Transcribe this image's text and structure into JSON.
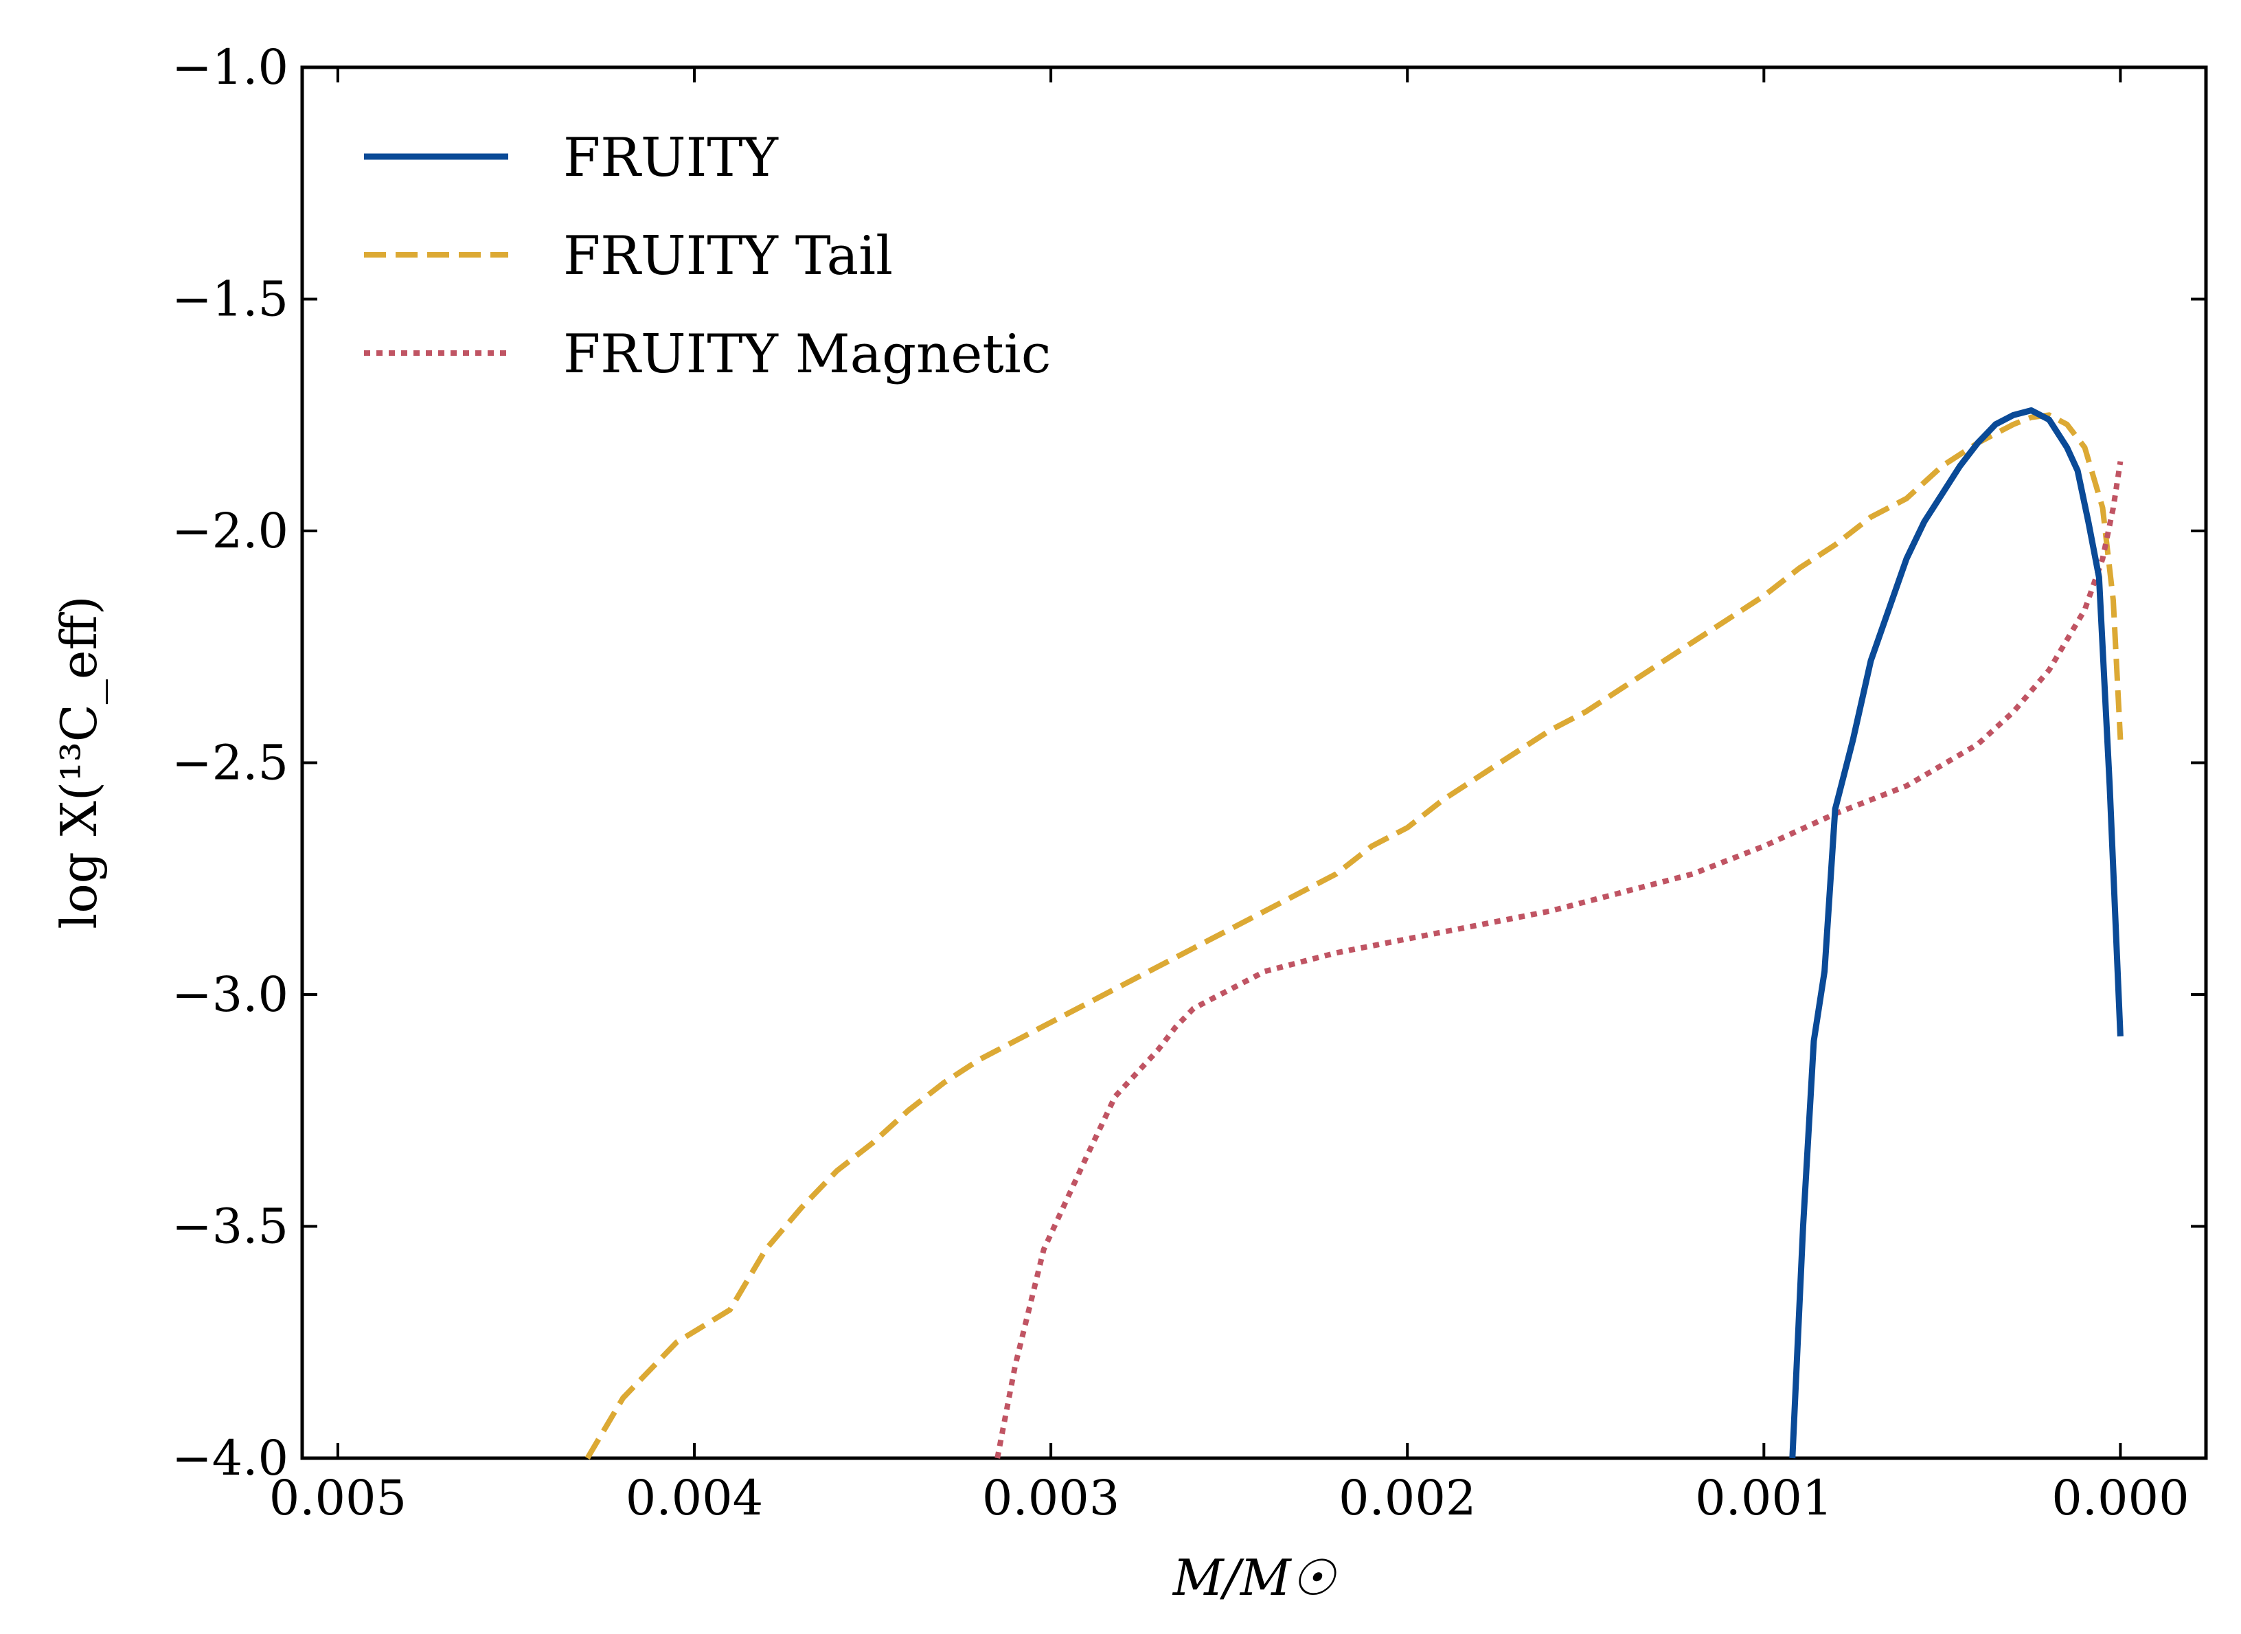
{
  "chart_data": {
    "type": "line",
    "title": "",
    "xlabel": "M/M☉",
    "ylabel": "log X(¹³C_eff)",
    "xlim": [
      0.0051,
      -0.00024
    ],
    "ylim": [
      -4.0,
      -1.0
    ],
    "x_ticks": [
      0.005,
      0.004,
      0.003,
      0.002,
      0.001,
      0.0
    ],
    "x_tick_labels": [
      "0.005",
      "0.004",
      "0.003",
      "0.002",
      "0.001",
      "0.000"
    ],
    "y_ticks": [
      -1.0,
      -1.5,
      -2.0,
      -2.5,
      -3.0,
      -3.5,
      -4.0
    ],
    "y_tick_labels": [
      "−1.0",
      "−1.5",
      "−2.0",
      "−2.5",
      "−3.0",
      "−3.5",
      "−4.0"
    ],
    "grid": false,
    "legend_position": "top-left",
    "series": [
      {
        "name": "FRUITY",
        "color": "#0a4a97",
        "style": "solid",
        "x": [
          0.00092,
          0.00089,
          0.00086,
          0.00083,
          0.0008,
          0.00075,
          0.0007,
          0.00065,
          0.0006,
          0.00055,
          0.0005,
          0.00045,
          0.0004,
          0.00035,
          0.0003,
          0.00025,
          0.0002,
          0.00015,
          0.00012,
          9e-05,
          6e-05,
          3e-05,
          0.0
        ],
        "y": [
          -4.0,
          -3.5,
          -3.1,
          -2.95,
          -2.6,
          -2.45,
          -2.28,
          -2.17,
          -2.06,
          -1.98,
          -1.92,
          -1.86,
          -1.81,
          -1.77,
          -1.75,
          -1.74,
          -1.76,
          -1.82,
          -1.87,
          -1.98,
          -2.1,
          -2.55,
          -3.09
        ]
      },
      {
        "name": "FRUITY Tail",
        "color": "#dca934",
        "style": "dashed",
        "x": [
          0.0043,
          0.0042,
          0.00405,
          0.0039,
          0.0038,
          0.0037,
          0.0036,
          0.0035,
          0.0034,
          0.0033,
          0.0032,
          0.0031,
          0.003,
          0.0029,
          0.0028,
          0.0027,
          0.0026,
          0.0025,
          0.0024,
          0.0023,
          0.0022,
          0.0021,
          0.002,
          0.0019,
          0.0018,
          0.0017,
          0.0016,
          0.0015,
          0.0014,
          0.0013,
          0.0012,
          0.0011,
          0.001,
          0.0009,
          0.0008,
          0.0007,
          0.0006,
          0.0005,
          0.0004,
          0.0003,
          0.00025,
          0.0002,
          0.00015,
          0.0001,
          5e-05,
          2e-05,
          0.0
        ],
        "y": [
          -4.0,
          -3.87,
          -3.75,
          -3.68,
          -3.55,
          -3.46,
          -3.38,
          -3.32,
          -3.25,
          -3.19,
          -3.14,
          -3.1,
          -3.06,
          -3.02,
          -2.98,
          -2.94,
          -2.9,
          -2.86,
          -2.82,
          -2.78,
          -2.74,
          -2.68,
          -2.64,
          -2.58,
          -2.53,
          -2.48,
          -2.43,
          -2.39,
          -2.34,
          -2.29,
          -2.24,
          -2.19,
          -2.14,
          -2.08,
          -2.03,
          -1.97,
          -1.93,
          -1.86,
          -1.81,
          -1.77,
          -1.755,
          -1.75,
          -1.77,
          -1.82,
          -1.95,
          -2.15,
          -2.45
        ]
      },
      {
        "name": "FRUITY Magnetic",
        "color": "#c05463",
        "style": "dotted",
        "x": [
          0.00315,
          0.0031,
          0.00302,
          0.0029,
          0.00282,
          0.0027,
          0.00265,
          0.0026,
          0.00255,
          0.0025,
          0.0024,
          0.0022,
          0.002,
          0.0018,
          0.0016,
          0.0014,
          0.0012,
          0.001,
          0.0008,
          0.0006,
          0.0004,
          0.0003,
          0.0002,
          0.0001,
          5e-05,
          2e-05,
          0.0
        ],
        "y": [
          -4.0,
          -3.8,
          -3.55,
          -3.35,
          -3.22,
          -3.12,
          -3.07,
          -3.03,
          -3.01,
          -2.99,
          -2.95,
          -2.91,
          -2.88,
          -2.85,
          -2.82,
          -2.78,
          -2.74,
          -2.68,
          -2.61,
          -2.55,
          -2.46,
          -2.39,
          -2.3,
          -2.17,
          -2.06,
          -1.95,
          -1.85
        ]
      }
    ]
  }
}
